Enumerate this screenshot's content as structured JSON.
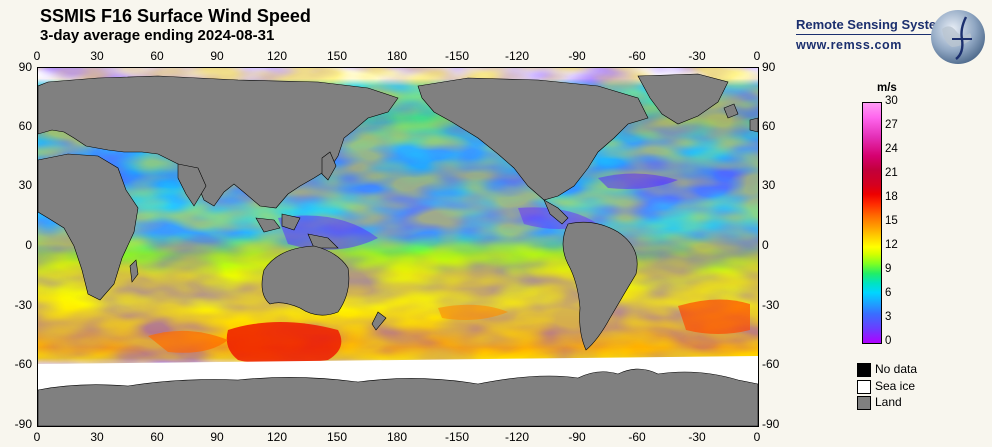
{
  "title": "SSMIS F16 Surface Wind Speed",
  "subtitle": "3-day average ending 2024-08-31",
  "brand": {
    "name": "Remote Sensing Systems",
    "url": "www.remss.com"
  },
  "x_ticks": [
    "0",
    "30",
    "60",
    "90",
    "120",
    "150",
    "180",
    "-150",
    "-120",
    "-90",
    "-60",
    "-30",
    "0"
  ],
  "y_ticks": [
    "90",
    "60",
    "30",
    "0",
    "-30",
    "-60",
    "-90"
  ],
  "colorbar": {
    "units": "m/s",
    "min": 0,
    "max": 30,
    "ticks": [
      "30",
      "27",
      "24",
      "21",
      "18",
      "15",
      "12",
      "9",
      "6",
      "3",
      "0"
    ]
  },
  "legend": [
    {
      "label": "No data",
      "color": "#000000"
    },
    {
      "label": "Sea ice",
      "color": "#ffffff"
    },
    {
      "label": "Land",
      "color": "#808080"
    }
  ],
  "colors": {
    "land": "#808080",
    "sea_ice": "#ffffff",
    "no_data": "#000000",
    "brand": "#1b2f6e"
  }
}
